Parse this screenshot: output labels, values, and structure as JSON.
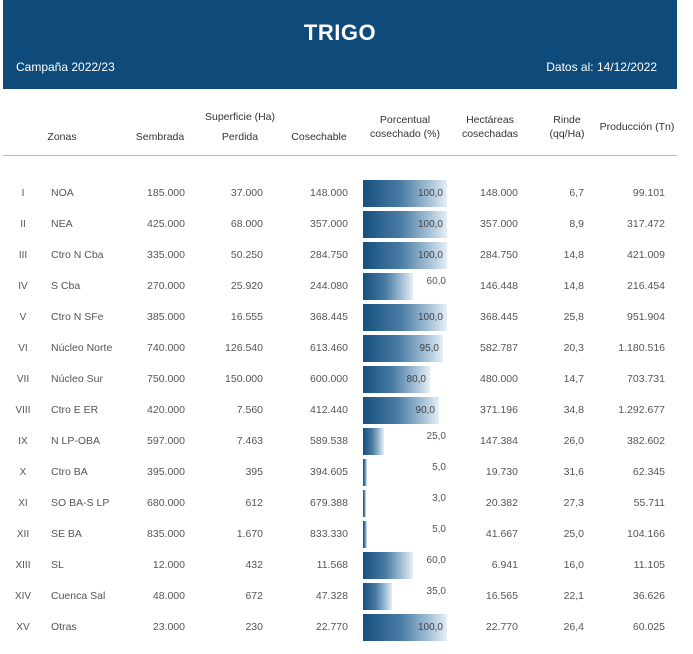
{
  "header": {
    "title": "TRIGO",
    "campaign": "Campaña 2022/23",
    "date": "Datos al: 14/12/2022"
  },
  "columns": {
    "zonas": "Zonas",
    "superficie": "Superficie (Ha)",
    "sembrada": "Sembrada",
    "perdida": "Perdida",
    "cosechable": "Cosechable",
    "porcentual_1": "Porcentual",
    "porcentual_2": "cosechado (%)",
    "hectareas_1": "Hectáreas",
    "hectareas_2": "cosechadas",
    "rinde_1": "Rinde",
    "rinde_2": "(qq/Ha)",
    "produccion": "Producción (Tn)"
  },
  "bar_color": "#15507f",
  "rows": [
    {
      "num": "I",
      "zona": "NOA",
      "sembrada": "185.000",
      "perdida": "37.000",
      "cosechable": "148.000",
      "pct_label": "100,0",
      "pct": 100,
      "hectareas": "148.000",
      "rinde": "6,7",
      "produccion": "99.101"
    },
    {
      "num": "II",
      "zona": "NEA",
      "sembrada": "425.000",
      "perdida": "68.000",
      "cosechable": "357.000",
      "pct_label": "100,0",
      "pct": 100,
      "hectareas": "357.000",
      "rinde": "8,9",
      "produccion": "317.472"
    },
    {
      "num": "III",
      "zona": "Ctro N Cba",
      "sembrada": "335.000",
      "perdida": "50.250",
      "cosechable": "284.750",
      "pct_label": "100,0",
      "pct": 100,
      "hectareas": "284.750",
      "rinde": "14,8",
      "produccion": "421.009"
    },
    {
      "num": "IV",
      "zona": "S Cba",
      "sembrada": "270.000",
      "perdida": "25.920",
      "cosechable": "244.080",
      "pct_label": "60,0",
      "pct": 60,
      "hectareas": "146.448",
      "rinde": "14,8",
      "produccion": "216.454"
    },
    {
      "num": "V",
      "zona": "Ctro N SFe",
      "sembrada": "385.000",
      "perdida": "16.555",
      "cosechable": "368.445",
      "pct_label": "100,0",
      "pct": 100,
      "hectareas": "368.445",
      "rinde": "25,8",
      "produccion": "951.904"
    },
    {
      "num": "VI",
      "zona": "Núcleo Norte",
      "sembrada": "740.000",
      "perdida": "126.540",
      "cosechable": "613.460",
      "pct_label": "95,0",
      "pct": 95,
      "hectareas": "582.787",
      "rinde": "20,3",
      "produccion": "1.180.516"
    },
    {
      "num": "VII",
      "zona": "Núcleo Sur",
      "sembrada": "750.000",
      "perdida": "150.000",
      "cosechable": "600.000",
      "pct_label": "80,0",
      "pct": 80,
      "hectareas": "480.000",
      "rinde": "14,7",
      "produccion": "703.731"
    },
    {
      "num": "VIII",
      "zona": "Ctro E ER",
      "sembrada": "420.000",
      "perdida": "7.560",
      "cosechable": "412.440",
      "pct_label": "90,0",
      "pct": 90,
      "hectareas": "371.196",
      "rinde": "34,8",
      "produccion": "1.292.677"
    },
    {
      "num": "IX",
      "zona": "N LP-OBA",
      "sembrada": "597.000",
      "perdida": "7.463",
      "cosechable": "589.538",
      "pct_label": "25,0",
      "pct": 25,
      "hectareas": "147.384",
      "rinde": "26,0",
      "produccion": "382.602"
    },
    {
      "num": "X",
      "zona": "Ctro BA",
      "sembrada": "395.000",
      "perdida": "395",
      "cosechable": "394.605",
      "pct_label": "5,0",
      "pct": 5,
      "hectareas": "19.730",
      "rinde": "31,6",
      "produccion": "62.345"
    },
    {
      "num": "XI",
      "zona": "SO BA-S LP",
      "sembrada": "680.000",
      "perdida": "612",
      "cosechable": "679.388",
      "pct_label": "3,0",
      "pct": 3,
      "hectareas": "20.382",
      "rinde": "27,3",
      "produccion": "55.711"
    },
    {
      "num": "XII",
      "zona": "SE BA",
      "sembrada": "835.000",
      "perdida": "1.670",
      "cosechable": "833.330",
      "pct_label": "5,0",
      "pct": 5,
      "hectareas": "41.667",
      "rinde": "25,0",
      "produccion": "104.166"
    },
    {
      "num": "XIII",
      "zona": "SL",
      "sembrada": "12.000",
      "perdida": "432",
      "cosechable": "11.568",
      "pct_label": "60,0",
      "pct": 60,
      "hectareas": "6.941",
      "rinde": "16,0",
      "produccion": "11.105"
    },
    {
      "num": "XIV",
      "zona": "Cuenca Sal",
      "sembrada": "48.000",
      "perdida": "672",
      "cosechable": "47.328",
      "pct_label": "35,0",
      "pct": 35,
      "hectareas": "16.565",
      "rinde": "22,1",
      "produccion": "36.626"
    },
    {
      "num": "XV",
      "zona": "Otras",
      "sembrada": "23.000",
      "perdida": "230",
      "cosechable": "22.770",
      "pct_label": "100,0",
      "pct": 100,
      "hectareas": "22.770",
      "rinde": "26,4",
      "produccion": "60.025"
    }
  ]
}
